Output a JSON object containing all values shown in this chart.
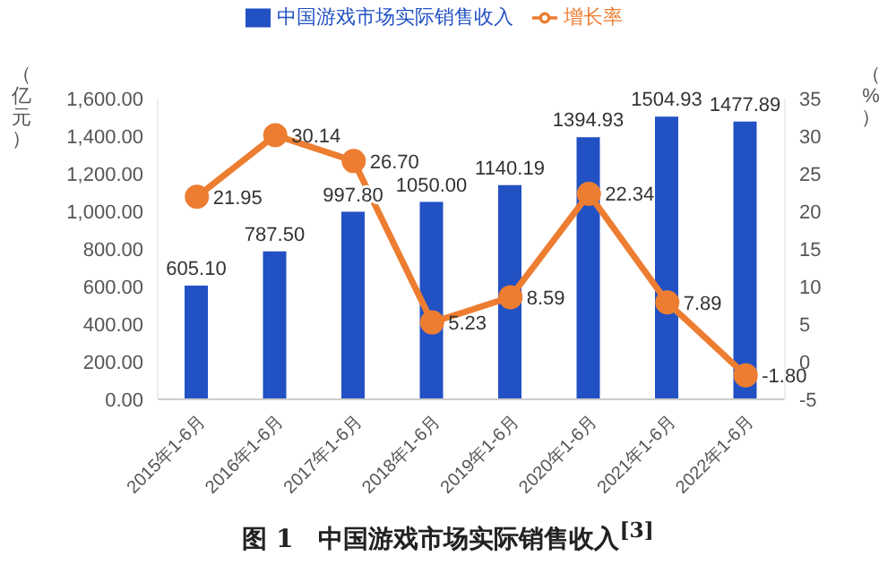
{
  "chart_data": {
    "type": "bar",
    "title": "图 1　中国游戏市场实际销售收入$^{[3]}$",
    "ylabel": "（亿元）",
    "y2label": "（%）",
    "categories": [
      "2015年1-6月",
      "2016年1-6月",
      "2017年1-6月",
      "2018年1-6月",
      "2019年1-6月",
      "2020年1-6月",
      "2021年1-6月",
      "2022年1-6月"
    ],
    "series": [
      {
        "name": "中国游戏市场实际销售收入",
        "color": "#2251c4",
        "values": [
          605.1,
          787.5,
          997.8,
          1050,
          1140.19,
          1394.93,
          1504.93,
          1477.89
        ],
        "value_labels": [
          "605.10",
          "787.50",
          "997.80",
          "1050.00",
          "1140.19",
          "1394.93",
          "1504.93",
          "1477.89"
        ]
      },
      {
        "name": "增长率",
        "type": "line",
        "axis": "y2",
        "color": "#ed7d31",
        "marker": "circle",
        "values": [
          21.95,
          30.14,
          26.7,
          5.23,
          8.59,
          22.34,
          7.89,
          -1.8
        ],
        "value_labels": [
          "21.95",
          "30.14",
          "26.70",
          "5.23",
          "8.59",
          "22.34",
          "7.89",
          "-1.80"
        ]
      }
    ],
    "ylim": [
      0,
      1600
    ],
    "yticks": [
      {
        "value": 0,
        "label": "0.00"
      },
      {
        "value": 200,
        "label": "200.00"
      },
      {
        "value": 400,
        "label": "400.00"
      },
      {
        "value": 600,
        "label": "600.00"
      },
      {
        "value": 800,
        "label": "800.00"
      },
      {
        "value": 1000,
        "label": "1,000.00"
      },
      {
        "value": 1200,
        "label": "1,200.00"
      },
      {
        "value": 1400,
        "label": "1,400.00"
      },
      {
        "value": 1600,
        "label": "1,600.00"
      }
    ],
    "y2lim": [
      -5,
      35
    ],
    "y2ticks": [
      -5,
      0,
      5,
      10,
      15,
      20,
      25,
      30,
      35
    ],
    "legend": "top"
  }
}
